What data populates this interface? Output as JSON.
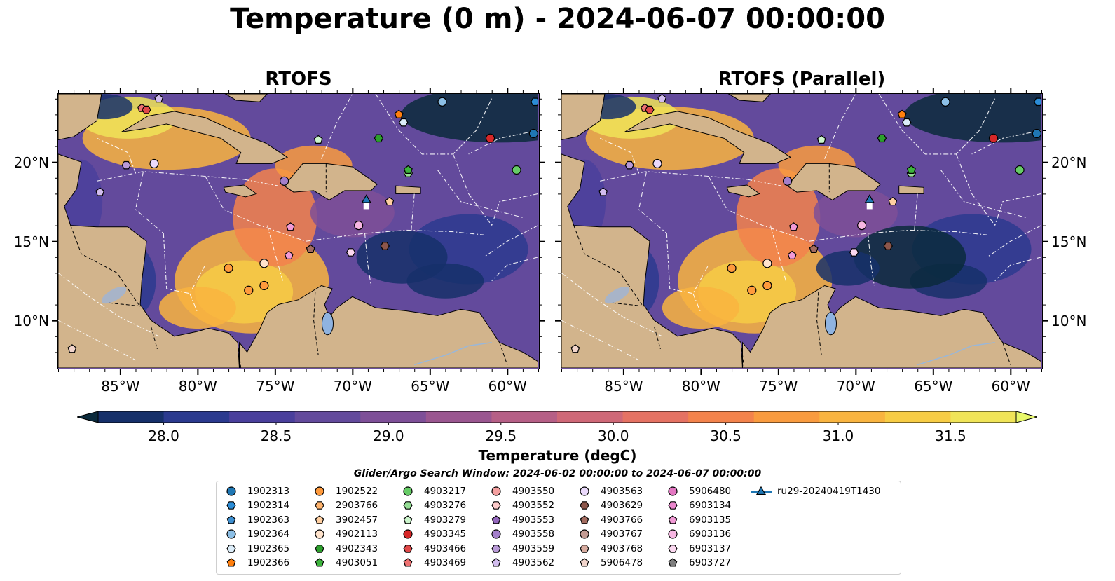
{
  "figure_title": "Temperature (0 m) - 2024-06-07 00:00:00",
  "panels": [
    {
      "title": "RTOFS"
    },
    {
      "title": "RTOFS (Parallel)"
    }
  ],
  "lon_ticks": [
    "85°W",
    "80°W",
    "75°W",
    "70°W",
    "65°W",
    "60°W"
  ],
  "lat_ticks": [
    "20°N",
    "15°N",
    "10°N"
  ],
  "colorbar": {
    "label": "Temperature (degC)",
    "ticks": [
      "28.0",
      "28.5",
      "29.0",
      "29.5",
      "30.0",
      "30.5",
      "31.0",
      "31.5"
    ],
    "colors": [
      "#0b2a3c",
      "#16306a",
      "#2b3a8f",
      "#4a3f9c",
      "#634a9c",
      "#7e4f98",
      "#9a5690",
      "#b65f86",
      "#cf6877",
      "#e57263",
      "#f3834c",
      "#f99b3f",
      "#f9b440",
      "#f7cc45",
      "#f0e458",
      "#e8f86a"
    ]
  },
  "search_window": "Glider/Argo Search Window: 2024-06-02 00:00:00 to 2024-06-07 00:00:00",
  "legend": [
    {
      "id": "1902313",
      "marker": "circle",
      "color": "#1f77b4"
    },
    {
      "id": "1902314",
      "marker": "hexagon",
      "color": "#2b8cd6"
    },
    {
      "id": "1902363",
      "marker": "pentagon",
      "color": "#3d8fd0"
    },
    {
      "id": "1902364",
      "marker": "circle",
      "color": "#8cbfe6"
    },
    {
      "id": "1902365",
      "marker": "hexagon",
      "color": "#dcedf9"
    },
    {
      "id": "1902366",
      "marker": "pentagon",
      "color": "#ff7f0e"
    },
    {
      "id": "1902522",
      "marker": "circle",
      "color": "#ff9a3c"
    },
    {
      "id": "2903766",
      "marker": "hexagon",
      "color": "#ffb46e"
    },
    {
      "id": "3902457",
      "marker": "pentagon",
      "color": "#ffcfa1"
    },
    {
      "id": "4902113",
      "marker": "circle",
      "color": "#ffe3cc"
    },
    {
      "id": "4902343",
      "marker": "hexagon",
      "color": "#2ca02c"
    },
    {
      "id": "4903051",
      "marker": "pentagon",
      "color": "#3db43d"
    },
    {
      "id": "4903217",
      "marker": "circle",
      "color": "#66cc66"
    },
    {
      "id": "4903276",
      "marker": "hexagon",
      "color": "#95dd95"
    },
    {
      "id": "4903279",
      "marker": "pentagon",
      "color": "#ccf5cc"
    },
    {
      "id": "4903345",
      "marker": "circle",
      "color": "#d62728"
    },
    {
      "id": "4903466",
      "marker": "hexagon",
      "color": "#e04848"
    },
    {
      "id": "4903469",
      "marker": "pentagon",
      "color": "#ee7272"
    },
    {
      "id": "4903550",
      "marker": "circle",
      "color": "#f4a0a0"
    },
    {
      "id": "4903552",
      "marker": "hexagon",
      "color": "#fccaca"
    },
    {
      "id": "4903553",
      "marker": "pentagon",
      "color": "#9467bd"
    },
    {
      "id": "4903558",
      "marker": "circle",
      "color": "#a47fcb"
    },
    {
      "id": "4903559",
      "marker": "hexagon",
      "color": "#b99ad8"
    },
    {
      "id": "4903562",
      "marker": "pentagon",
      "color": "#d2bdee"
    },
    {
      "id": "4903563",
      "marker": "circle",
      "color": "#ead9fb"
    },
    {
      "id": "4903629",
      "marker": "hexagon",
      "color": "#8c564b"
    },
    {
      "id": "4903766",
      "marker": "pentagon",
      "color": "#a26b5f"
    },
    {
      "id": "4903767",
      "marker": "circle",
      "color": "#c49c94"
    },
    {
      "id": "4903768",
      "marker": "hexagon",
      "color": "#d8aca0"
    },
    {
      "id": "5906478",
      "marker": "pentagon",
      "color": "#f2d5cc"
    },
    {
      "id": "5906480",
      "marker": "circle",
      "color": "#e377c2"
    },
    {
      "id": "6903134",
      "marker": "hexagon",
      "color": "#ea86cd"
    },
    {
      "id": "6903135",
      "marker": "pentagon",
      "color": "#f29ad6"
    },
    {
      "id": "6903136",
      "marker": "circle",
      "color": "#f7b6e2"
    },
    {
      "id": "6903137",
      "marker": "hexagon",
      "color": "#fbd8f0"
    },
    {
      "id": "6903727",
      "marker": "pentagon",
      "color": "#7f7f7f"
    },
    {
      "id": "ru29-20240419T1430",
      "marker": "triangle-line",
      "color": "#1f77b4"
    }
  ],
  "chart_data": {
    "type": "heatmap",
    "title": "Temperature (0 m) - 2024-06-07 00:00:00",
    "variable": "Temperature",
    "units": "degC",
    "depth": "0 m",
    "time": "2024-06-07 00:00:00",
    "extent": {
      "lon": [
        -89,
        -58
      ],
      "lat": [
        7,
        24.3
      ]
    },
    "color_range": [
      28.0,
      31.5
    ],
    "color_levels": [
      28.0,
      28.25,
      28.5,
      28.75,
      29.0,
      29.25,
      29.5,
      29.75,
      30.0,
      30.25,
      30.5,
      30.75,
      31.0,
      31.25,
      31.5
    ],
    "extend": "both",
    "panels": [
      "RTOFS",
      "RTOFS (Parallel)"
    ],
    "observations": [
      {
        "id": "1902314",
        "lon": -58.2,
        "lat": 23.8
      },
      {
        "id": "1902313",
        "lon": -58.3,
        "lat": 21.8
      },
      {
        "id": "1902364",
        "lon": -64.2,
        "lat": 23.8
      },
      {
        "id": "1902366",
        "lon": -67.0,
        "lat": 23.0
      },
      {
        "id": "1902365",
        "lon": -66.7,
        "lat": 22.5
      },
      {
        "id": "4903345",
        "lon": -61.1,
        "lat": 21.5
      },
      {
        "id": "4902343",
        "lon": -68.3,
        "lat": 21.5
      },
      {
        "id": "4903217",
        "lon": -59.4,
        "lat": 19.5
      },
      {
        "id": "4903276",
        "lon": -66.4,
        "lat": 19.3
      },
      {
        "id": "4903051",
        "lon": -66.4,
        "lat": 19.5
      },
      {
        "id": "4903279",
        "lon": -72.2,
        "lat": 21.4
      },
      {
        "id": "4903469",
        "lon": -83.6,
        "lat": 23.4
      },
      {
        "id": "4903466",
        "lon": -83.3,
        "lat": 23.3
      },
      {
        "id": "4903562",
        "lon": -82.5,
        "lat": 24.0
      },
      {
        "id": "4903559",
        "lon": -84.6,
        "lat": 19.8
      },
      {
        "id": "4903563",
        "lon": -82.8,
        "lat": 19.9
      },
      {
        "id": "4903562",
        "lon": -86.3,
        "lat": 18.1
      },
      {
        "id": "4903558",
        "lon": -74.4,
        "lat": 18.8
      },
      {
        "id": "3902457",
        "lon": -67.6,
        "lat": 17.5
      },
      {
        "id": "6903135",
        "lon": -74.0,
        "lat": 15.9
      },
      {
        "id": "6903136",
        "lon": -69.6,
        "lat": 16.0
      },
      {
        "id": "4903766",
        "lon": -72.7,
        "lat": 14.5
      },
      {
        "id": "6903135",
        "lon": -74.1,
        "lat": 14.1
      },
      {
        "id": "6903137",
        "lon": -70.1,
        "lat": 14.3
      },
      {
        "id": "4903629",
        "lon": -67.9,
        "lat": 14.7
      },
      {
        "id": "4902113",
        "lon": -75.7,
        "lat": 13.6
      },
      {
        "id": "1902522",
        "lon": -78.0,
        "lat": 13.3
      },
      {
        "id": "1902522",
        "lon": -76.7,
        "lat": 11.9
      },
      {
        "id": "1902522",
        "lon": -75.7,
        "lat": 12.2
      },
      {
        "id": "5906478",
        "lon": -88.1,
        "lat": 8.2
      },
      {
        "id": "ru29-20240419T1430",
        "lon": -69.1,
        "lat": 17.6
      }
    ]
  }
}
